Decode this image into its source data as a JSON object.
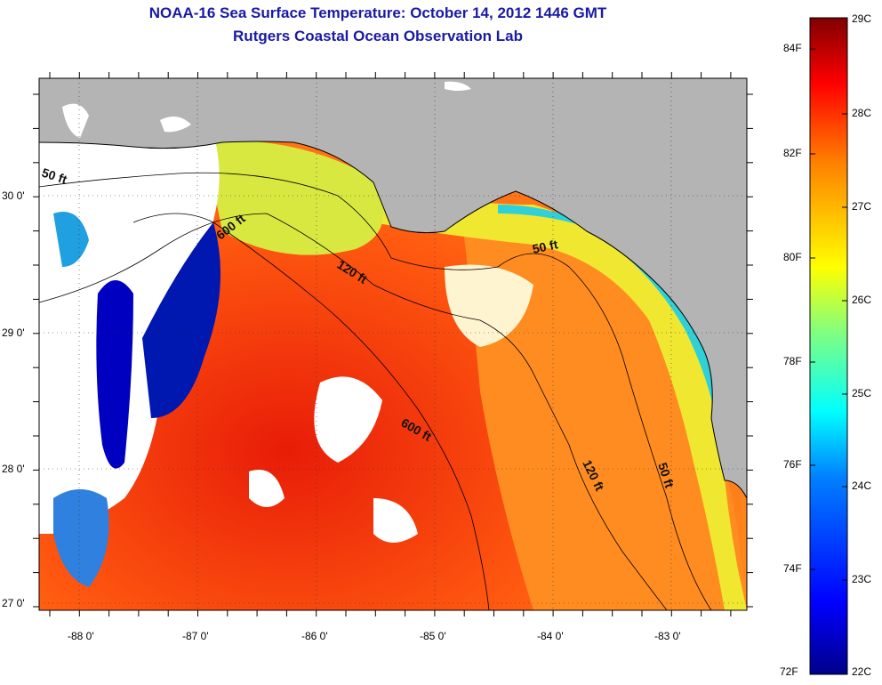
{
  "title": {
    "line1": "NOAA-16 Sea Surface Temperature:  October 14, 2012 1446 GMT",
    "line2": "Rutgers Coastal Ocean Observation Lab"
  },
  "map": {
    "lon_ticks": [
      "-88 0'",
      "-87 0'",
      "-86 0'",
      "-85 0'",
      "-84 0'",
      "-83 0'"
    ],
    "lat_ticks": [
      "30 0'",
      "29 0'",
      "28 0'",
      "27 0'"
    ],
    "contour_labels": [
      "50 ft",
      "600 ft",
      "120 ft",
      "50 ft",
      "600 ft",
      "120 ft",
      "50 ft"
    ],
    "land_color": "#b4b4b4",
    "cloud_color": "#ffffff"
  },
  "colorbar": {
    "fahrenheit_labels": [
      "84F",
      "82F",
      "80F",
      "78F",
      "76F",
      "74F",
      "72F"
    ],
    "celsius_labels": [
      "29C",
      "28C",
      "27C",
      "26C",
      "25C",
      "24C",
      "23C",
      "22C"
    ],
    "range_c": [
      22,
      29
    ],
    "colors": [
      "#00008a",
      "#0000ff",
      "#0080ff",
      "#00ffff",
      "#80ff80",
      "#ffff00",
      "#ff8000",
      "#ff0000",
      "#800000"
    ]
  }
}
